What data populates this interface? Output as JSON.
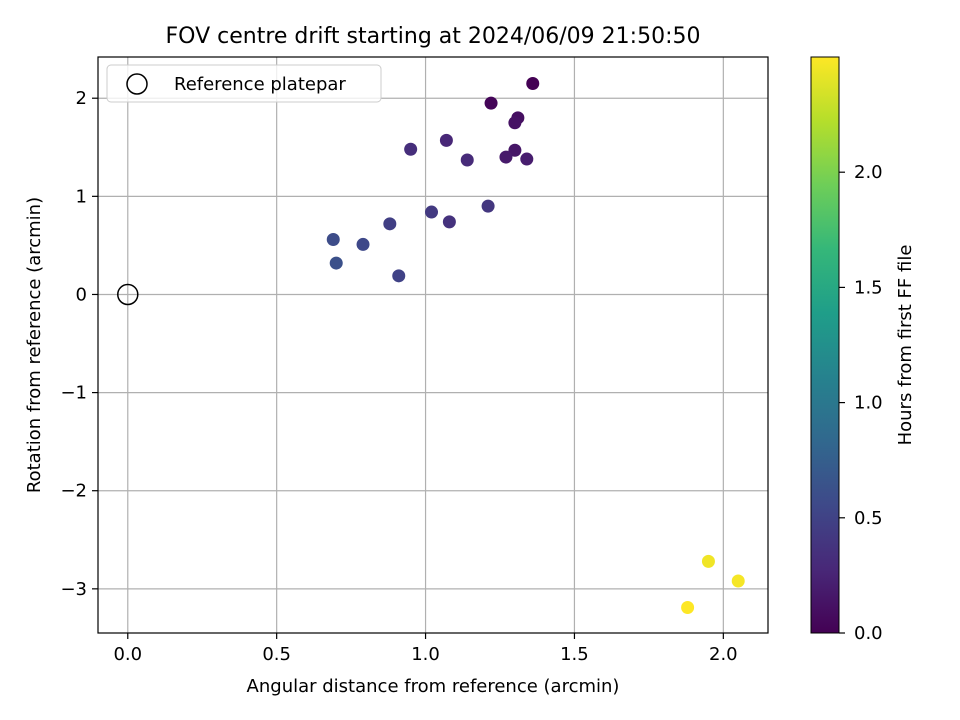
{
  "chart_data": {
    "type": "scatter",
    "title": "FOV centre drift starting at 2024/06/09 21:50:50",
    "xlabel": "Angular distance from reference (arcmin)",
    "ylabel": "Rotation from reference (arcmin)",
    "xlim": [
      -0.1,
      2.15
    ],
    "ylim": [
      -3.45,
      2.42
    ],
    "xticks": [
      0.0,
      0.5,
      1.0,
      1.5,
      2.0
    ],
    "xtick_labels": [
      "0.0",
      "0.5",
      "1.0",
      "1.5",
      "2.0"
    ],
    "yticks": [
      -3,
      -2,
      -1,
      0,
      1,
      2
    ],
    "ytick_labels": [
      "−3",
      "−2",
      "−1",
      "0",
      "1",
      "2"
    ],
    "grid": true,
    "legend": {
      "placement": "top-left",
      "entries": [
        {
          "label": "Reference platepar",
          "marker": "open-circle"
        }
      ]
    },
    "reference_point": {
      "x": 0.0,
      "y": 0.0
    },
    "colormap": "viridis",
    "colorbar": {
      "label": "Hours from first FF file",
      "range": [
        0.0,
        2.5
      ],
      "ticks": [
        0.0,
        0.5,
        1.0,
        1.5,
        2.0
      ],
      "tick_labels": [
        "0.0",
        "0.5",
        "1.0",
        "1.5",
        "2.0"
      ]
    },
    "points": [
      {
        "x": 1.36,
        "y": 2.15,
        "c": 0.0
      },
      {
        "x": 1.22,
        "y": 1.95,
        "c": 0.03
      },
      {
        "x": 1.31,
        "y": 1.8,
        "c": 0.1
      },
      {
        "x": 1.3,
        "y": 1.75,
        "c": 0.12
      },
      {
        "x": 1.3,
        "y": 1.47,
        "c": 0.15
      },
      {
        "x": 1.27,
        "y": 1.4,
        "c": 0.18
      },
      {
        "x": 1.34,
        "y": 1.38,
        "c": 0.2
      },
      {
        "x": 1.07,
        "y": 1.57,
        "c": 0.27
      },
      {
        "x": 1.14,
        "y": 1.37,
        "c": 0.3
      },
      {
        "x": 0.95,
        "y": 1.48,
        "c": 0.33
      },
      {
        "x": 1.08,
        "y": 0.74,
        "c": 0.36
      },
      {
        "x": 1.21,
        "y": 0.9,
        "c": 0.4
      },
      {
        "x": 1.02,
        "y": 0.84,
        "c": 0.43
      },
      {
        "x": 0.88,
        "y": 0.72,
        "c": 0.47
      },
      {
        "x": 0.91,
        "y": 0.19,
        "c": 0.5
      },
      {
        "x": 0.79,
        "y": 0.51,
        "c": 0.55
      },
      {
        "x": 0.69,
        "y": 0.56,
        "c": 0.58
      },
      {
        "x": 0.7,
        "y": 0.32,
        "c": 0.62
      },
      {
        "x": 1.95,
        "y": -2.72,
        "c": 2.45
      },
      {
        "x": 2.05,
        "y": -2.92,
        "c": 2.47
      },
      {
        "x": 1.88,
        "y": -3.19,
        "c": 2.5
      }
    ]
  },
  "colors": {
    "grid": "#b0b0b0",
    "axes": "#000000",
    "viridis_stops": [
      "#440154",
      "#482878",
      "#3e4989",
      "#31688e",
      "#26828e",
      "#1f9e89",
      "#35b779",
      "#6ece58",
      "#b5de2b",
      "#fde725"
    ]
  }
}
